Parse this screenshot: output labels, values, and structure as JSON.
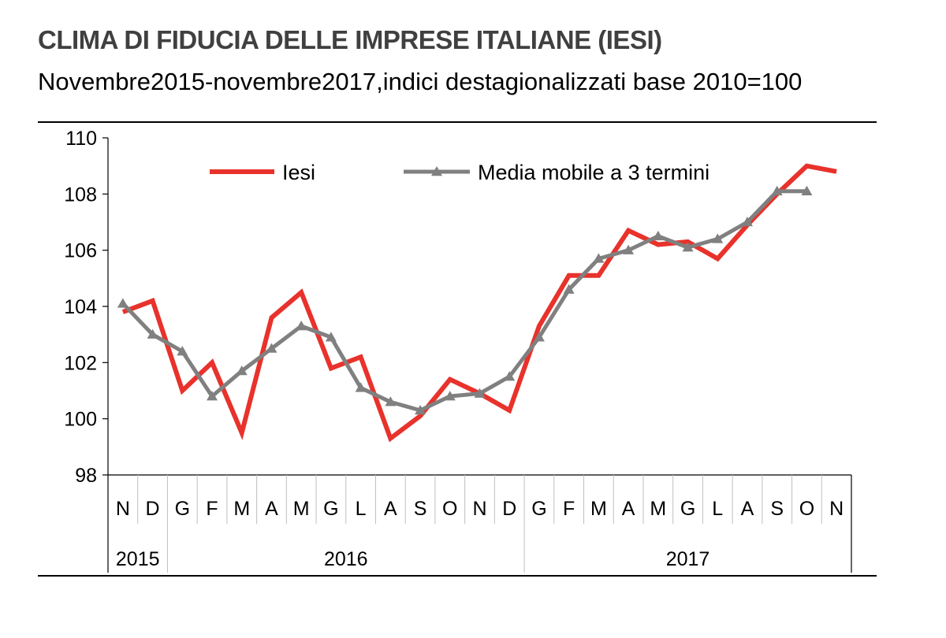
{
  "chart_data": {
    "type": "line",
    "title": "CLIMA DI FIDUCIA DELLE IMPRESE ITALIANE (IESI)",
    "subtitle": "Novembre2015-novembre2017,indici destagionalizzati base 2010=100",
    "categories": [
      "N",
      "D",
      "G",
      "F",
      "M",
      "A",
      "M",
      "G",
      "L",
      "A",
      "S",
      "O",
      "N",
      "D",
      "G",
      "F",
      "M",
      "A",
      "M",
      "G",
      "L",
      "A",
      "S",
      "O",
      "N"
    ],
    "year_groups": [
      {
        "label": "2015",
        "start": 0,
        "end": 1
      },
      {
        "label": "2016",
        "start": 2,
        "end": 13
      },
      {
        "label": "2017",
        "start": 14,
        "end": 24
      }
    ],
    "ylim": [
      98,
      110
    ],
    "yticks": [
      "98",
      "100",
      "102",
      "104",
      "106",
      "108",
      "110"
    ],
    "legend_position": "top",
    "series": [
      {
        "name": "Iesi",
        "color": "#e8322b",
        "values": [
          103.8,
          104.2,
          101.0,
          102.0,
          99.5,
          103.6,
          104.5,
          101.8,
          102.2,
          99.3,
          100.1,
          101.4,
          100.9,
          100.3,
          103.3,
          105.1,
          105.1,
          106.7,
          106.2,
          106.3,
          105.7,
          106.9,
          108.0,
          109.0,
          108.8
        ]
      },
      {
        "name": "Media mobile a 3 termini",
        "color": "#808080",
        "values": [
          104.1,
          103.0,
          102.4,
          100.8,
          101.7,
          102.5,
          103.3,
          102.9,
          101.1,
          100.6,
          100.3,
          100.8,
          100.9,
          101.5,
          102.9,
          104.6,
          105.7,
          106.0,
          106.5,
          106.1,
          106.4,
          107.0,
          108.1,
          108.1,
          null
        ]
      }
    ]
  }
}
